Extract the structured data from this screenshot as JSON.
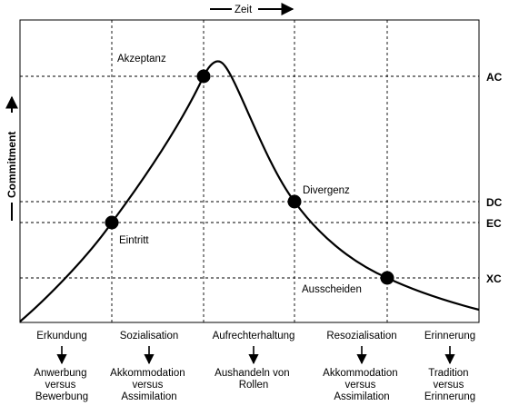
{
  "time_axis": {
    "label": "Zeit"
  },
  "commitment_axis": {
    "label": "Commitment"
  },
  "levels": [
    {
      "id": "AC",
      "label": "AC"
    },
    {
      "id": "DC",
      "label": "DC"
    },
    {
      "id": "EC",
      "label": "EC"
    },
    {
      "id": "XC",
      "label": "XC"
    }
  ],
  "points": [
    {
      "id": "eintritt",
      "label": "Eintritt"
    },
    {
      "id": "akzeptanz",
      "label": "Akzeptanz"
    },
    {
      "id": "divergenz",
      "label": "Divergenz"
    },
    {
      "id": "ausscheiden",
      "label": "Ausscheiden"
    }
  ],
  "phases": [
    {
      "name": "Erkundung",
      "lines": [
        "Anwerbung",
        "versus",
        "Bewerbung"
      ]
    },
    {
      "name": "Sozialisation",
      "lines": [
        "Akkommodation",
        "versus",
        "Assimilation"
      ]
    },
    {
      "name": "Aufrechterhaltung",
      "lines": [
        "Aushandeln von",
        "Rollen"
      ]
    },
    {
      "name": "Resozialisation",
      "lines": [
        "Akkommodation",
        "versus",
        "Assimilation"
      ]
    },
    {
      "name": "Erinnerung",
      "lines": [
        "Tradition",
        "versus",
        "Erinnerung"
      ]
    }
  ]
}
